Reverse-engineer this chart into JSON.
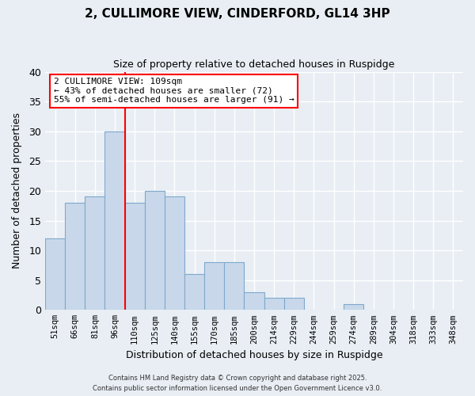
{
  "title": "2, CULLIMORE VIEW, CINDERFORD, GL14 3HP",
  "subtitle": "Size of property relative to detached houses in Ruspidge",
  "xlabel": "Distribution of detached houses by size in Ruspidge",
  "ylabel": "Number of detached properties",
  "bar_color": "#c8d8ea",
  "bar_edgecolor": "#7fa8cc",
  "bins": [
    "51sqm",
    "66sqm",
    "81sqm",
    "96sqm",
    "110sqm",
    "125sqm",
    "140sqm",
    "155sqm",
    "170sqm",
    "185sqm",
    "200sqm",
    "214sqm",
    "229sqm",
    "244sqm",
    "259sqm",
    "274sqm",
    "289sqm",
    "304sqm",
    "318sqm",
    "333sqm",
    "348sqm"
  ],
  "values": [
    12,
    18,
    19,
    30,
    18,
    20,
    19,
    6,
    8,
    8,
    3,
    2,
    2,
    0,
    0,
    1,
    0,
    0,
    0,
    0,
    0
  ],
  "red_line_bin_index": 4,
  "ylim": [
    0,
    40
  ],
  "annotation_title": "2 CULLIMORE VIEW: 109sqm",
  "annotation_line1": "← 43% of detached houses are smaller (72)",
  "annotation_line2": "55% of semi-detached houses are larger (91) →",
  "footer1": "Contains HM Land Registry data © Crown copyright and database right 2025.",
  "footer2": "Contains public sector information licensed under the Open Government Licence v3.0.",
  "background_color": "#e8eef4",
  "grid_color": "#ffffff"
}
